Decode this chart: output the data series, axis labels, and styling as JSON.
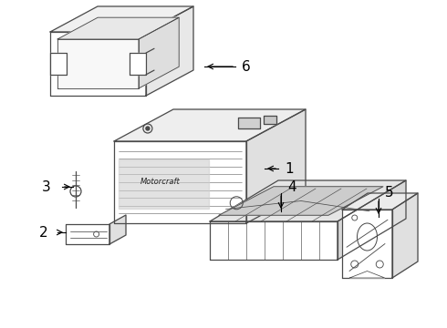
{
  "background_color": "#ffffff",
  "line_color": "#4a4a4a",
  "line_width": 0.9,
  "fig_width": 4.9,
  "fig_height": 3.6,
  "dpi": 100
}
